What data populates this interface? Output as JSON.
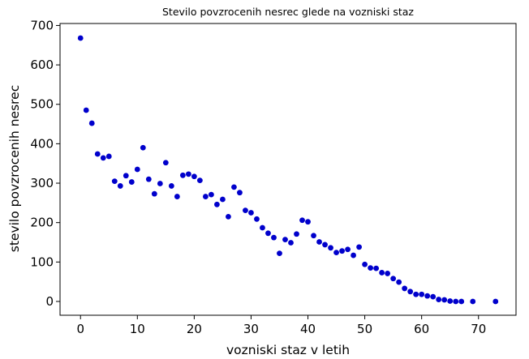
{
  "chart_data": {
    "type": "scatter",
    "title": "Stevilo povzrocenih nesrec glede na vozniski staz",
    "xlabel": "vozniski staz v letih",
    "ylabel": "stevilo povzrocenih nesrec",
    "xlim": [
      -3.6,
      76.6
    ],
    "ylim": [
      -35,
      705
    ],
    "xticks": [
      0,
      10,
      20,
      30,
      40,
      50,
      60,
      70
    ],
    "yticks": [
      0,
      100,
      200,
      300,
      400,
      500,
      600,
      700
    ],
    "grid": false,
    "marker_color": "#0000cc",
    "series": [
      {
        "points": [
          [
            0,
            668
          ],
          [
            1,
            485
          ],
          [
            2,
            452
          ],
          [
            3,
            374
          ],
          [
            4,
            364
          ],
          [
            5,
            368
          ],
          [
            6,
            305
          ],
          [
            7,
            293
          ],
          [
            8,
            319
          ],
          [
            9,
            303
          ],
          [
            10,
            335
          ],
          [
            11,
            390
          ],
          [
            12,
            310
          ],
          [
            13,
            273
          ],
          [
            14,
            299
          ],
          [
            15,
            352
          ],
          [
            16,
            293
          ],
          [
            17,
            266
          ],
          [
            18,
            320
          ],
          [
            19,
            323
          ],
          [
            20,
            317
          ],
          [
            21,
            307
          ],
          [
            22,
            266
          ],
          [
            23,
            271
          ],
          [
            24,
            246
          ],
          [
            25,
            259
          ],
          [
            26,
            215
          ],
          [
            27,
            290
          ],
          [
            28,
            276
          ],
          [
            29,
            231
          ],
          [
            30,
            225
          ],
          [
            31,
            209
          ],
          [
            32,
            187
          ],
          [
            33,
            173
          ],
          [
            34,
            162
          ],
          [
            35,
            122
          ],
          [
            36,
            157
          ],
          [
            37,
            149
          ],
          [
            38,
            171
          ],
          [
            39,
            206
          ],
          [
            40,
            202
          ],
          [
            41,
            167
          ],
          [
            42,
            151
          ],
          [
            43,
            144
          ],
          [
            44,
            136
          ],
          [
            45,
            124
          ],
          [
            46,
            128
          ],
          [
            47,
            132
          ],
          [
            48,
            117
          ],
          [
            49,
            138
          ],
          [
            50,
            94
          ],
          [
            51,
            85
          ],
          [
            52,
            84
          ],
          [
            53,
            73
          ],
          [
            54,
            71
          ],
          [
            55,
            58
          ],
          [
            56,
            49
          ],
          [
            57,
            33
          ],
          [
            58,
            25
          ],
          [
            59,
            18
          ],
          [
            60,
            18
          ],
          [
            61,
            14
          ],
          [
            62,
            12
          ],
          [
            63,
            5
          ],
          [
            64,
            4
          ],
          [
            65,
            1
          ],
          [
            66,
            0
          ],
          [
            67,
            0
          ],
          [
            69,
            0
          ],
          [
            73,
            0
          ]
        ]
      }
    ]
  }
}
